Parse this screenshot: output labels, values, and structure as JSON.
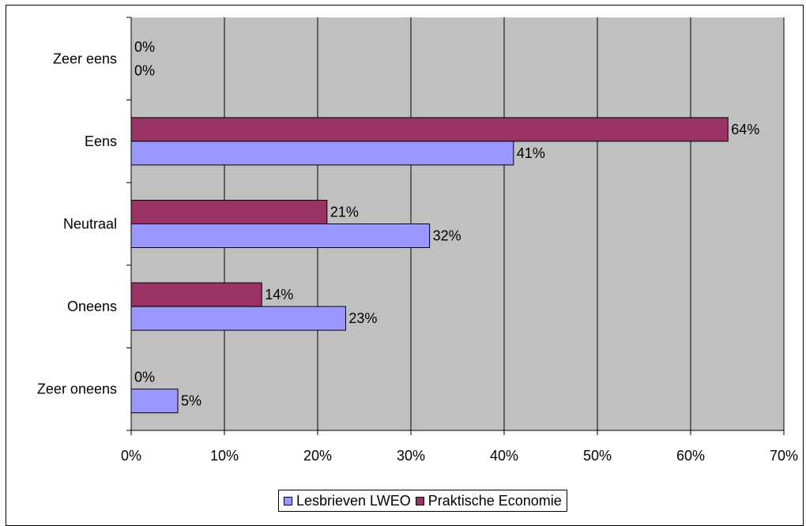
{
  "chart_data": {
    "type": "bar",
    "orientation": "horizontal",
    "categories": [
      "Zeer eens",
      "Eens",
      "Neutraal",
      "Oneens",
      "Zeer oneens"
    ],
    "series": [
      {
        "name": "Lesbrieven LWEO",
        "values": [
          0,
          41,
          32,
          23,
          5
        ],
        "labels": [
          "0%",
          "41%",
          "32%",
          "23%",
          "5%"
        ],
        "color": "#9999ff"
      },
      {
        "name": "Praktische Economie",
        "values": [
          0,
          64,
          21,
          14,
          0
        ],
        "labels": [
          "0%",
          "64%",
          "21%",
          "14%",
          "0%"
        ],
        "color": "#993366"
      }
    ],
    "xlim": [
      0,
      70
    ],
    "xticks": [
      "0%",
      "10%",
      "20%",
      "30%",
      "40%",
      "50%",
      "60%",
      "70%"
    ],
    "plot_background": "#c0c0c0",
    "grid": true,
    "legend": "bottom"
  }
}
